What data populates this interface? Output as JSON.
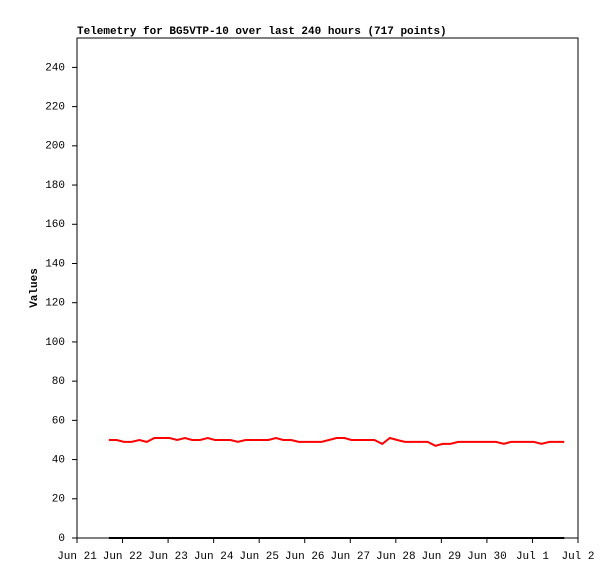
{
  "chart_data": {
    "type": "line",
    "title": "Telemetry for BG5VTP-10 over last 240 hours (717 points)",
    "y_label": "Values",
    "series": [
      {
        "color": "#ff0000",
        "x": [
          0.7,
          0.87,
          1.03,
          1.2,
          1.37,
          1.53,
          1.7,
          1.87,
          2.03,
          2.2,
          2.37,
          2.53,
          2.7,
          2.87,
          3.03,
          3.2,
          3.37,
          3.53,
          3.7,
          3.87,
          4.03,
          4.2,
          4.37,
          4.53,
          4.7,
          4.87,
          5.03,
          5.2,
          5.37,
          5.53,
          5.7,
          5.87,
          6.03,
          6.2,
          6.37,
          6.53,
          6.7,
          6.87,
          7.03,
          7.2,
          7.37,
          7.53,
          7.7,
          7.87,
          8.03,
          8.2,
          8.37,
          8.53,
          8.7,
          8.87,
          9.03,
          9.2,
          9.37,
          9.53,
          9.7,
          9.87,
          10.03,
          10.2,
          10.37,
          10.53,
          10.7
        ],
        "values": [
          50,
          50,
          49,
          49,
          50,
          49,
          51,
          51,
          51,
          50,
          51,
          50,
          50,
          51,
          50,
          50,
          50,
          49,
          50,
          50,
          50,
          50,
          51,
          50,
          50,
          49,
          49,
          49,
          49,
          50,
          51,
          51,
          50,
          50,
          50,
          50,
          48,
          51,
          50,
          49,
          49,
          49,
          49,
          47,
          48,
          48,
          49,
          49,
          49,
          49,
          49,
          49,
          48,
          49,
          49,
          49,
          49,
          48,
          49,
          49,
          49
        ]
      },
      {
        "color": "#000000",
        "x": [
          0.7,
          10.7
        ],
        "values": [
          0,
          0
        ]
      }
    ],
    "xlim": [
      0,
      11
    ],
    "xticks": [
      {
        "value": 0,
        "label": "Jun 21"
      },
      {
        "value": 1,
        "label": "Jun 22"
      },
      {
        "value": 2,
        "label": "Jun 23"
      },
      {
        "value": 3,
        "label": "Jun 24"
      },
      {
        "value": 4,
        "label": "Jun 25"
      },
      {
        "value": 5,
        "label": "Jun 26"
      },
      {
        "value": 6,
        "label": "Jun 27"
      },
      {
        "value": 7,
        "label": "Jun 28"
      },
      {
        "value": 8,
        "label": "Jun 29"
      },
      {
        "value": 9,
        "label": "Jun 30"
      },
      {
        "value": 10,
        "label": "Jul 1"
      },
      {
        "value": 11,
        "label": "Jul 2"
      }
    ],
    "ylim": [
      0,
      255
    ],
    "yticks": [
      0,
      20,
      40,
      60,
      80,
      100,
      120,
      140,
      160,
      180,
      200,
      220,
      240
    ]
  }
}
